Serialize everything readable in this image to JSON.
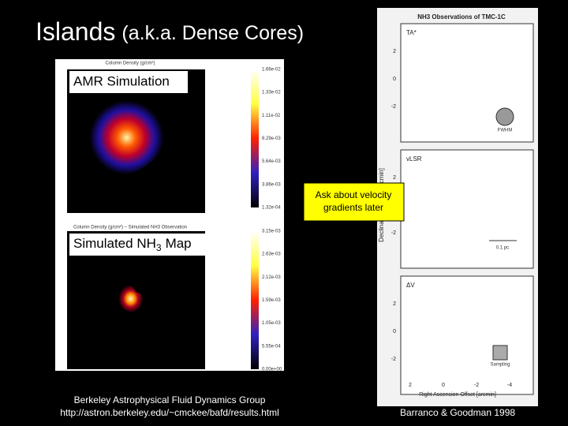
{
  "slide": {
    "title": {
      "main": "Islands",
      "rest": "(a.k.a. Dense Cores)"
    },
    "left_figure": {
      "top_label": "AMR Simulation",
      "top_caption": "Column Density (g/cm²)",
      "bottom_label": {
        "main": "Simulated NH",
        "sub": "3",
        "rest": "Map"
      },
      "bottom_caption": "Column Density (g/cm²) – Simulated NH3 Observation",
      "colorbar_top": [
        "1.66e-02",
        "1.33e-02",
        "1.11e-02",
        "8.29e-03",
        "5.64e-03",
        "3.86e-03",
        "1.32e-04"
      ],
      "colorbar_bottom": [
        "3.15e-03",
        "2.63e-03",
        "2.12e-03",
        "1.59e-03",
        "1.05e-03",
        "5.55e-04",
        "0.00e+00"
      ]
    },
    "right_figure": {
      "title": "NH3 Observations of TMC-1C",
      "panels": [
        "TA*",
        "vLSR",
        "ΔV"
      ],
      "fwhm": "FWHM",
      "scale": "0.1 pc",
      "sampling": "Sampling",
      "y_axis": "Declination Offset [arcmin]",
      "x_axis": "Right Ascension Offset [arcmin]",
      "y_ticks": [
        "2",
        "0",
        "-2"
      ],
      "x_ticks": [
        "2",
        "0",
        "-2",
        "-4"
      ]
    },
    "callout": "Ask about velocity gradients later",
    "credit_left": [
      "Berkeley Astrophysical Fluid Dynamics Group",
      "http://astron.berkeley.edu/~cmckee/bafd/results.html"
    ],
    "credit_right": "Barranco & Goodman 1998"
  }
}
